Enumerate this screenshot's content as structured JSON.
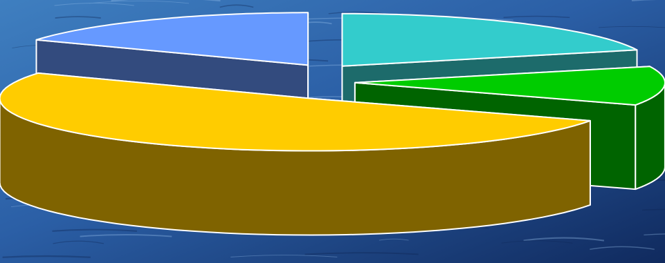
{
  "background": {
    "style": "water-texture",
    "colors": [
      "#2b5fa6",
      "#1a3a7a",
      "#102a5e",
      "#3f7fc0"
    ]
  },
  "chart_data": {
    "type": "pie",
    "style": "3d-exploded",
    "title": "",
    "legend": "none",
    "data_labels": "none",
    "slices": [
      {
        "value": 17,
        "top_color": "#6699ff",
        "side_color": "#334b7e"
      },
      {
        "value": 20,
        "top_color": "#33cccc",
        "side_color": "#1d6b6b"
      },
      {
        "value": 12,
        "top_color": "#00cc00",
        "side_color": "#006400"
      },
      {
        "value": 51,
        "top_color": "#ffcc00",
        "side_color": "#7f6300"
      }
    ],
    "outline_color": "#ffffff"
  }
}
